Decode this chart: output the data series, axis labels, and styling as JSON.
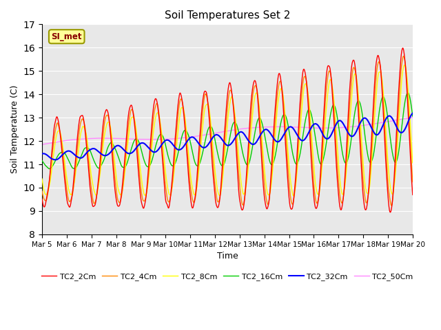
{
  "title": "Soil Temperatures Set 2",
  "xlabel": "Time",
  "ylabel": "Soil Temperature (C)",
  "ylim": [
    8.0,
    17.0
  ],
  "yticks": [
    8.0,
    9.0,
    10.0,
    11.0,
    12.0,
    13.0,
    14.0,
    15.0,
    16.0,
    17.0
  ],
  "xtick_labels": [
    "Mar 5",
    "Mar 6",
    "Mar 7",
    "Mar 8",
    "Mar 9",
    "Mar 10",
    "Mar 11",
    "Mar 12",
    "Mar 13",
    "Mar 14",
    "Mar 15",
    "Mar 16",
    "Mar 17",
    "Mar 18",
    "Mar 19",
    "Mar 20"
  ],
  "series_colors": {
    "TC2_2Cm": "#ff0000",
    "TC2_4Cm": "#ff8800",
    "TC2_8Cm": "#ffff00",
    "TC2_16Cm": "#00cc00",
    "TC2_32Cm": "#0000ff",
    "TC2_50Cm": "#ff88ff"
  },
  "annotation_text": "SI_met",
  "annotation_bbox_face": "#ffff99",
  "annotation_bbox_edge": "#999900",
  "plot_bg_color": "#e8e8e8",
  "linewidth": 1.0,
  "figsize": [
    6.4,
    4.8
  ],
  "dpi": 100
}
